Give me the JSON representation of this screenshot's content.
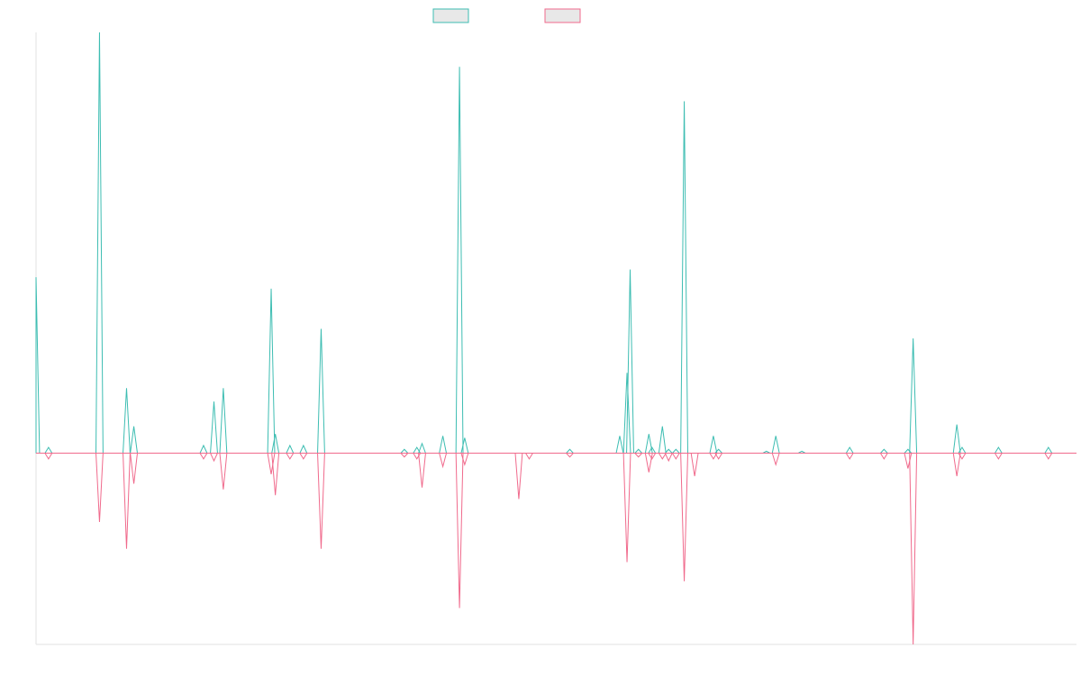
{
  "chart_data": {
    "type": "line",
    "title": "",
    "xlabel": "",
    "ylabel": "",
    "grid": false,
    "legend": "top-center",
    "xlim": [
      0,
      1000
    ],
    "ylim": [
      -1.0,
      2.2
    ],
    "colors": {
      "positive": "#3dbdb2",
      "negative": "#f06a8c",
      "swatch_fill": "#e8e8e8",
      "axis": "#e2e2e2"
    },
    "series": [
      {
        "color": "#3dbdb2",
        "spikes": [
          [
            0,
            0.92
          ],
          [
            12,
            0.03
          ],
          [
            61,
            2.2
          ],
          [
            87,
            0.34
          ],
          [
            94,
            0.14
          ],
          [
            161,
            0.04
          ],
          [
            171,
            0.27
          ],
          [
            180,
            0.34
          ],
          [
            226,
            0.86
          ],
          [
            230,
            0.1
          ],
          [
            244,
            0.04
          ],
          [
            257,
            0.04
          ],
          [
            274,
            0.65
          ],
          [
            354,
            0.02
          ],
          [
            366,
            0.03
          ],
          [
            371,
            0.05
          ],
          [
            391,
            0.09
          ],
          [
            407,
            2.02
          ],
          [
            412,
            0.08
          ],
          [
            513,
            0.02
          ],
          [
            561,
            0.09
          ],
          [
            568,
            0.42
          ],
          [
            571,
            0.96
          ],
          [
            579,
            0.02
          ],
          [
            589,
            0.1
          ],
          [
            592,
            0.03
          ],
          [
            602,
            0.14
          ],
          [
            608,
            0.02
          ],
          [
            615,
            0.02
          ],
          [
            623,
            1.84
          ],
          [
            651,
            0.09
          ],
          [
            656,
            0.02
          ],
          [
            702,
            0.01
          ],
          [
            711,
            0.09
          ],
          [
            736,
            0.01
          ],
          [
            782,
            0.03
          ],
          [
            815,
            0.02
          ],
          [
            838,
            0.02
          ],
          [
            843,
            0.6
          ],
          [
            885,
            0.15
          ],
          [
            890,
            0.03
          ],
          [
            925,
            0.03
          ],
          [
            973,
            0.03
          ]
        ]
      },
      {
        "color": "#f06a8c",
        "spikes": [
          [
            12,
            -0.03
          ],
          [
            61,
            -0.36
          ],
          [
            87,
            -0.5
          ],
          [
            94,
            -0.16
          ],
          [
            161,
            -0.03
          ],
          [
            171,
            -0.04
          ],
          [
            180,
            -0.19
          ],
          [
            226,
            -0.11
          ],
          [
            230,
            -0.22
          ],
          [
            244,
            -0.03
          ],
          [
            257,
            -0.03
          ],
          [
            274,
            -0.5
          ],
          [
            354,
            -0.02
          ],
          [
            366,
            -0.03
          ],
          [
            371,
            -0.18
          ],
          [
            391,
            -0.07
          ],
          [
            407,
            -0.81
          ],
          [
            412,
            -0.06
          ],
          [
            464,
            -0.24
          ],
          [
            474,
            -0.03
          ],
          [
            513,
            -0.02
          ],
          [
            568,
            -0.57
          ],
          [
            579,
            -0.02
          ],
          [
            589,
            -0.1
          ],
          [
            592,
            -0.03
          ],
          [
            602,
            -0.03
          ],
          [
            608,
            -0.04
          ],
          [
            615,
            -0.03
          ],
          [
            623,
            -0.67
          ],
          [
            633,
            -0.12
          ],
          [
            651,
            -0.03
          ],
          [
            656,
            -0.03
          ],
          [
            711,
            -0.06
          ],
          [
            782,
            -0.03
          ],
          [
            815,
            -0.03
          ],
          [
            838,
            -0.08
          ],
          [
            843,
            -1.0
          ],
          [
            885,
            -0.12
          ],
          [
            890,
            -0.03
          ],
          [
            925,
            -0.03
          ],
          [
            973,
            -0.03
          ]
        ]
      }
    ]
  }
}
